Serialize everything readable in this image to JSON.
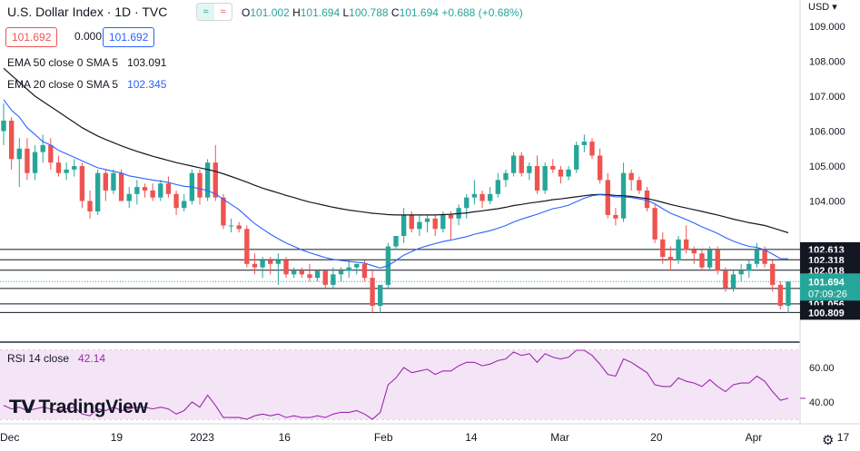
{
  "header": {
    "title": "U.S. Dollar Index · 1D · TVC",
    "toggle_left": "≈",
    "toggle_right": "≈",
    "o_label": "O",
    "o_value": "101.002",
    "h_label": "H",
    "h_value": "101.694",
    "l_label": "L",
    "l_value": "100.788",
    "c_label": "C",
    "c_value": "101.694",
    "change": "+0.688 (+0.68%)",
    "bid": "101.692",
    "spread": "0.000",
    "ask": "101.692"
  },
  "legend": {
    "ema50_label": "EMA 50 close 0 SMA 5",
    "ema50_value": "103.091",
    "ema20_label": "EMA 20 close 0 SMA 5",
    "ema20_value": "102.345",
    "rsi_label": "RSI 14 close",
    "rsi_value": "42.14"
  },
  "axis": {
    "currency": "USD",
    "price_ticks": [
      "109.000",
      "108.000",
      "107.000",
      "106.000",
      "105.000",
      "104.000"
    ],
    "rsi_ticks": [
      "60.00",
      "40.00"
    ],
    "x_labels": [
      "Dec",
      "19",
      "2023",
      "16",
      "Feb",
      "14",
      "Mar",
      "20",
      "Apr",
      "17"
    ]
  },
  "price_labels": [
    {
      "text": "102.613",
      "value": 102.613
    },
    {
      "text": "102.318",
      "value": 102.318
    },
    {
      "text": "102.018",
      "value": 102.018
    },
    {
      "text": "101.498",
      "value": 101.498
    },
    {
      "text": "101.056",
      "value": 101.056
    },
    {
      "text": "100.809",
      "value": 100.809
    }
  ],
  "current_price": {
    "value": "101.694",
    "countdown": "07:09:26"
  },
  "branding": {
    "name": "TradingView"
  },
  "colors": {
    "up": "#26a69a",
    "down": "#ef5350",
    "ema20": "#2962ff",
    "ema50": "#131722",
    "rsi": "#9c27b0",
    "rsi_band": "#f3e5f5"
  },
  "chart_data": {
    "type": "candlestick",
    "x_labels": [
      "Dec",
      "19",
      "2023",
      "16",
      "Feb",
      "14",
      "Mar",
      "20",
      "Apr",
      "17"
    ],
    "horizontal_levels": [
      102.613,
      102.318,
      102.018,
      101.498,
      101.056,
      100.809
    ],
    "candles": [
      {
        "o": 106.0,
        "h": 106.8,
        "l": 105.6,
        "c": 106.3
      },
      {
        "o": 106.3,
        "h": 106.4,
        "l": 104.9,
        "c": 105.2
      },
      {
        "o": 105.2,
        "h": 105.8,
        "l": 104.4,
        "c": 105.5
      },
      {
        "o": 105.5,
        "h": 105.8,
        "l": 104.6,
        "c": 104.8
      },
      {
        "o": 104.8,
        "h": 105.6,
        "l": 104.6,
        "c": 105.4
      },
      {
        "o": 105.4,
        "h": 105.9,
        "l": 105.1,
        "c": 105.6
      },
      {
        "o": 105.6,
        "h": 105.8,
        "l": 104.9,
        "c": 105.1
      },
      {
        "o": 105.1,
        "h": 105.3,
        "l": 104.7,
        "c": 104.8
      },
      {
        "o": 104.8,
        "h": 105.1,
        "l": 104.6,
        "c": 104.9
      },
      {
        "o": 104.9,
        "h": 105.2,
        "l": 104.7,
        "c": 105.0
      },
      {
        "o": 105.0,
        "h": 105.1,
        "l": 103.8,
        "c": 104.0
      },
      {
        "o": 104.0,
        "h": 104.3,
        "l": 103.5,
        "c": 103.7
      },
      {
        "o": 103.7,
        "h": 104.9,
        "l": 103.6,
        "c": 104.8
      },
      {
        "o": 104.8,
        "h": 104.9,
        "l": 104.0,
        "c": 104.3
      },
      {
        "o": 104.3,
        "h": 104.9,
        "l": 104.2,
        "c": 104.8
      },
      {
        "o": 104.8,
        "h": 104.9,
        "l": 104.0,
        "c": 104.0
      },
      {
        "o": 104.0,
        "h": 104.4,
        "l": 103.8,
        "c": 104.2
      },
      {
        "o": 104.2,
        "h": 104.6,
        "l": 103.9,
        "c": 104.4
      },
      {
        "o": 104.4,
        "h": 104.5,
        "l": 104.1,
        "c": 104.3
      },
      {
        "o": 104.3,
        "h": 104.5,
        "l": 104.0,
        "c": 104.1
      },
      {
        "o": 104.1,
        "h": 104.6,
        "l": 104.0,
        "c": 104.5
      },
      {
        "o": 104.5,
        "h": 104.7,
        "l": 104.1,
        "c": 104.2
      },
      {
        "o": 104.2,
        "h": 104.3,
        "l": 103.6,
        "c": 103.8
      },
      {
        "o": 103.8,
        "h": 104.2,
        "l": 103.7,
        "c": 104.0
      },
      {
        "o": 104.0,
        "h": 104.9,
        "l": 103.9,
        "c": 104.8
      },
      {
        "o": 104.8,
        "h": 104.9,
        "l": 103.9,
        "c": 104.1
      },
      {
        "o": 104.1,
        "h": 105.2,
        "l": 104.0,
        "c": 105.1
      },
      {
        "o": 105.1,
        "h": 105.6,
        "l": 104.0,
        "c": 104.1
      },
      {
        "o": 104.1,
        "h": 104.2,
        "l": 103.2,
        "c": 103.3
      },
      {
        "o": 103.3,
        "h": 103.5,
        "l": 103.1,
        "c": 103.3
      },
      {
        "o": 103.3,
        "h": 103.4,
        "l": 103.1,
        "c": 103.2
      },
      {
        "o": 103.2,
        "h": 103.3,
        "l": 102.1,
        "c": 102.2
      },
      {
        "o": 102.2,
        "h": 102.5,
        "l": 101.9,
        "c": 102.1
      },
      {
        "o": 102.1,
        "h": 102.4,
        "l": 101.8,
        "c": 102.3
      },
      {
        "o": 102.3,
        "h": 102.4,
        "l": 101.9,
        "c": 102.2
      },
      {
        "o": 102.2,
        "h": 102.5,
        "l": 101.6,
        "c": 102.3
      },
      {
        "o": 102.3,
        "h": 102.4,
        "l": 101.8,
        "c": 101.9
      },
      {
        "o": 101.9,
        "h": 102.1,
        "l": 101.8,
        "c": 102.0
      },
      {
        "o": 102.0,
        "h": 102.1,
        "l": 101.8,
        "c": 101.9
      },
      {
        "o": 101.9,
        "h": 102.2,
        "l": 101.7,
        "c": 101.8
      },
      {
        "o": 101.8,
        "h": 102.0,
        "l": 101.7,
        "c": 102.0
      },
      {
        "o": 102.0,
        "h": 102.0,
        "l": 101.5,
        "c": 101.6
      },
      {
        "o": 101.6,
        "h": 102.1,
        "l": 101.5,
        "c": 101.9
      },
      {
        "o": 101.9,
        "h": 102.1,
        "l": 101.7,
        "c": 102.0
      },
      {
        "o": 102.0,
        "h": 102.3,
        "l": 101.8,
        "c": 102.1
      },
      {
        "o": 102.1,
        "h": 102.2,
        "l": 101.9,
        "c": 102.2
      },
      {
        "o": 102.2,
        "h": 102.3,
        "l": 101.7,
        "c": 101.8
      },
      {
        "o": 101.8,
        "h": 102.0,
        "l": 100.8,
        "c": 101.0
      },
      {
        "o": 101.0,
        "h": 101.6,
        "l": 100.8,
        "c": 101.6
      },
      {
        "o": 101.6,
        "h": 102.8,
        "l": 101.5,
        "c": 102.7
      },
      {
        "o": 102.7,
        "h": 103.0,
        "l": 102.6,
        "c": 103.0
      },
      {
        "o": 103.0,
        "h": 103.8,
        "l": 102.8,
        "c": 103.6
      },
      {
        "o": 103.6,
        "h": 103.7,
        "l": 103.1,
        "c": 103.2
      },
      {
        "o": 103.2,
        "h": 103.6,
        "l": 103.0,
        "c": 103.4
      },
      {
        "o": 103.4,
        "h": 103.6,
        "l": 103.1,
        "c": 103.5
      },
      {
        "o": 103.5,
        "h": 103.6,
        "l": 103.0,
        "c": 103.2
      },
      {
        "o": 103.2,
        "h": 103.7,
        "l": 103.1,
        "c": 103.6
      },
      {
        "o": 103.6,
        "h": 103.7,
        "l": 102.9,
        "c": 103.5
      },
      {
        "o": 103.5,
        "h": 103.9,
        "l": 103.3,
        "c": 103.8
      },
      {
        "o": 103.8,
        "h": 104.2,
        "l": 103.5,
        "c": 104.1
      },
      {
        "o": 104.1,
        "h": 104.6,
        "l": 103.9,
        "c": 104.2
      },
      {
        "o": 104.2,
        "h": 104.3,
        "l": 103.8,
        "c": 104.0
      },
      {
        "o": 104.0,
        "h": 104.4,
        "l": 103.9,
        "c": 104.2
      },
      {
        "o": 104.2,
        "h": 104.8,
        "l": 104.1,
        "c": 104.6
      },
      {
        "o": 104.6,
        "h": 104.9,
        "l": 104.4,
        "c": 104.8
      },
      {
        "o": 104.8,
        "h": 105.4,
        "l": 104.7,
        "c": 105.3
      },
      {
        "o": 105.3,
        "h": 105.4,
        "l": 104.7,
        "c": 104.8
      },
      {
        "o": 104.8,
        "h": 105.1,
        "l": 104.6,
        "c": 105.0
      },
      {
        "o": 105.0,
        "h": 105.3,
        "l": 104.2,
        "c": 104.3
      },
      {
        "o": 104.3,
        "h": 105.1,
        "l": 104.2,
        "c": 105.0
      },
      {
        "o": 105.0,
        "h": 105.2,
        "l": 104.8,
        "c": 104.9
      },
      {
        "o": 104.9,
        "h": 105.0,
        "l": 104.5,
        "c": 104.7
      },
      {
        "o": 104.7,
        "h": 105.0,
        "l": 104.6,
        "c": 104.9
      },
      {
        "o": 104.9,
        "h": 105.7,
        "l": 104.8,
        "c": 105.6
      },
      {
        "o": 105.6,
        "h": 105.9,
        "l": 105.4,
        "c": 105.7
      },
      {
        "o": 105.7,
        "h": 105.8,
        "l": 105.2,
        "c": 105.3
      },
      {
        "o": 105.3,
        "h": 105.5,
        "l": 104.5,
        "c": 104.6
      },
      {
        "o": 104.6,
        "h": 104.8,
        "l": 103.5,
        "c": 103.6
      },
      {
        "o": 103.6,
        "h": 103.8,
        "l": 103.3,
        "c": 103.5
      },
      {
        "o": 103.5,
        "h": 105.1,
        "l": 103.4,
        "c": 104.8
      },
      {
        "o": 104.8,
        "h": 104.9,
        "l": 104.3,
        "c": 104.6
      },
      {
        "o": 104.6,
        "h": 104.7,
        "l": 104.2,
        "c": 104.3
      },
      {
        "o": 104.3,
        "h": 104.4,
        "l": 103.7,
        "c": 103.8
      },
      {
        "o": 103.8,
        "h": 103.9,
        "l": 102.8,
        "c": 102.9
      },
      {
        "o": 102.9,
        "h": 103.1,
        "l": 102.2,
        "c": 102.4
      },
      {
        "o": 102.4,
        "h": 102.7,
        "l": 102.0,
        "c": 102.3
      },
      {
        "o": 102.3,
        "h": 103.0,
        "l": 102.2,
        "c": 102.9
      },
      {
        "o": 102.9,
        "h": 103.3,
        "l": 102.5,
        "c": 102.6
      },
      {
        "o": 102.6,
        "h": 102.7,
        "l": 102.2,
        "c": 102.5
      },
      {
        "o": 102.5,
        "h": 102.6,
        "l": 102.0,
        "c": 102.1
      },
      {
        "o": 102.1,
        "h": 102.7,
        "l": 102.0,
        "c": 102.6
      },
      {
        "o": 102.6,
        "h": 102.7,
        "l": 101.9,
        "c": 102.0
      },
      {
        "o": 102.0,
        "h": 102.1,
        "l": 101.4,
        "c": 101.5
      },
      {
        "o": 101.5,
        "h": 102.0,
        "l": 101.4,
        "c": 101.9
      },
      {
        "o": 101.9,
        "h": 102.2,
        "l": 101.7,
        "c": 102.0
      },
      {
        "o": 102.0,
        "h": 102.3,
        "l": 101.8,
        "c": 102.2
      },
      {
        "o": 102.2,
        "h": 102.8,
        "l": 102.1,
        "c": 102.6
      },
      {
        "o": 102.6,
        "h": 102.7,
        "l": 102.1,
        "c": 102.2
      },
      {
        "o": 102.2,
        "h": 102.3,
        "l": 101.4,
        "c": 101.6
      },
      {
        "o": 101.6,
        "h": 101.7,
        "l": 100.9,
        "c": 101.0
      },
      {
        "o": 101.002,
        "h": 101.694,
        "l": 100.788,
        "c": 101.694
      }
    ],
    "ema20": [
      106.9,
      106.6,
      106.4,
      106.1,
      105.9,
      105.7,
      105.6,
      105.45,
      105.35,
      105.25,
      105.15,
      105.05,
      104.95,
      104.9,
      104.85,
      104.8,
      104.72,
      104.68,
      104.64,
      104.6,
      104.57,
      104.53,
      104.47,
      104.42,
      104.4,
      104.35,
      104.3,
      104.2,
      104.05,
      103.9,
      103.75,
      103.55,
      103.35,
      103.2,
      103.05,
      102.92,
      102.8,
      102.7,
      102.6,
      102.52,
      102.45,
      102.38,
      102.33,
      102.3,
      102.27,
      102.25,
      102.22,
      102.15,
      102.08,
      102.15,
      102.3,
      102.45,
      102.55,
      102.65,
      102.72,
      102.78,
      102.84,
      102.88,
      102.93,
      102.98,
      103.05,
      103.1,
      103.15,
      103.22,
      103.3,
      103.4,
      103.48,
      103.55,
      103.62,
      103.7,
      103.78,
      103.82,
      103.88,
      103.98,
      104.08,
      104.15,
      104.18,
      104.16,
      104.12,
      104.12,
      104.1,
      104.06,
      104.02,
      103.92,
      103.78,
      103.65,
      103.56,
      103.47,
      103.37,
      103.26,
      103.17,
      103.07,
      102.95,
      102.85,
      102.77,
      102.7,
      102.67,
      102.6,
      102.48,
      102.35,
      102.345
    ],
    "ema50": [
      107.8,
      107.6,
      107.4,
      107.2,
      107.0,
      106.85,
      106.7,
      106.55,
      106.4,
      106.25,
      106.1,
      105.98,
      105.86,
      105.76,
      105.67,
      105.58,
      105.5,
      105.42,
      105.35,
      105.28,
      105.22,
      105.16,
      105.1,
      105.05,
      105.0,
      104.95,
      104.9,
      104.85,
      104.78,
      104.7,
      104.62,
      104.54,
      104.45,
      104.37,
      104.3,
      104.23,
      104.16,
      104.1,
      104.03,
      103.97,
      103.92,
      103.87,
      103.82,
      103.78,
      103.74,
      103.71,
      103.68,
      103.65,
      103.63,
      103.61,
      103.6,
      103.6,
      103.6,
      103.6,
      103.6,
      103.6,
      103.61,
      103.62,
      103.64,
      103.66,
      103.69,
      103.72,
      103.75,
      103.78,
      103.82,
      103.87,
      103.9,
      103.94,
      103.97,
      104.0,
      104.04,
      104.06,
      104.09,
      104.12,
      104.15,
      104.18,
      104.19,
      104.18,
      104.16,
      104.15,
      104.13,
      104.1,
      104.07,
      104.02,
      103.96,
      103.9,
      103.85,
      103.8,
      103.75,
      103.7,
      103.65,
      103.6,
      103.54,
      103.48,
      103.43,
      103.38,
      103.34,
      103.3,
      103.23,
      103.16,
      103.091
    ],
    "rsi": [
      38,
      36,
      37,
      35,
      36,
      37,
      36,
      35,
      36,
      37,
      33,
      32,
      36,
      35,
      37,
      35,
      36,
      37,
      37,
      36,
      37,
      36,
      33,
      35,
      40,
      37,
      44,
      38,
      31,
      31,
      31,
      30,
      32,
      33,
      32,
      33,
      31,
      32,
      31,
      31,
      32,
      31,
      33,
      34,
      34,
      35,
      33,
      30,
      34,
      50,
      54,
      60,
      57,
      58,
      59,
      56,
      58,
      58,
      61,
      63,
      63,
      61,
      62,
      64,
      65,
      69,
      67,
      68,
      63,
      68,
      66,
      65,
      66,
      70,
      70,
      67,
      62,
      56,
      55,
      65,
      63,
      60,
      57,
      50,
      49,
      49,
      54,
      52,
      51,
      49,
      53,
      49,
      46,
      50,
      51,
      51,
      55,
      52,
      46,
      41,
      42.14
    ]
  }
}
